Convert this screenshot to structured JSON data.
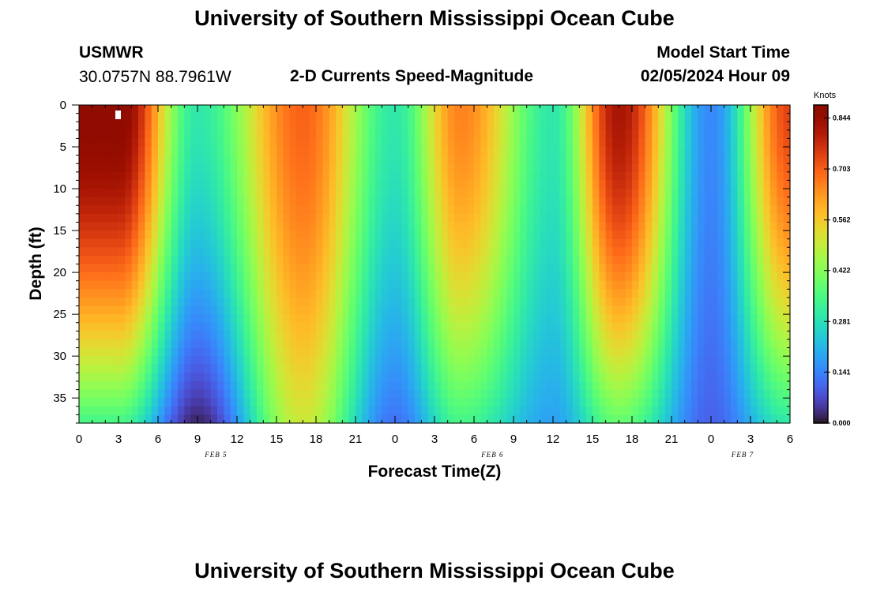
{
  "header": {
    "title": "University of Southern Mississippi Ocean Cube",
    "station": "USMWR",
    "coords": "30.0757N  88.7961W",
    "subtitle": "2-D Currents Speed-Magnitude",
    "model_start_label": "Model Start Time",
    "model_start_value": "02/05/2024 Hour 09"
  },
  "footer": {
    "title": "University of Southern Mississippi Ocean Cube"
  },
  "chart_data": {
    "type": "heatmap",
    "xlabel": "Forecast Time(Z)",
    "ylabel": "Depth (ft)",
    "x_tick_labels": [
      "0",
      "3",
      "6",
      "9",
      "12",
      "15",
      "18",
      "21",
      "0",
      "3",
      "6",
      "9",
      "12",
      "15",
      "18",
      "21",
      "0",
      "3",
      "6"
    ],
    "day_labels": [
      "FEB 5",
      "FEB 6",
      "FEB 7"
    ],
    "y_tick_values": [
      0,
      5,
      10,
      15,
      20,
      25,
      30,
      35
    ],
    "ylim": [
      0,
      38
    ],
    "xlim_hours": [
      0,
      54
    ],
    "colorbar": {
      "unit": "Knots",
      "ticks": [
        0.0,
        0.141,
        0.281,
        0.422,
        0.562,
        0.703,
        0.844
      ],
      "tick_labels": [
        "0.000",
        "0.141",
        "0.281",
        "0.422",
        "0.562",
        "0.703",
        "0.844"
      ],
      "range": [
        0,
        0.88
      ],
      "colormap": "turbo"
    },
    "speed_peaks": [
      {
        "hour": 3,
        "surface_knots": 0.88,
        "bottom_knots": 0.34
      },
      {
        "hour": 9,
        "surface_knots": 0.3,
        "bottom_knots": 0.02
      },
      {
        "hour": 17,
        "surface_knots": 0.7,
        "bottom_knots": 0.5
      },
      {
        "hour": 24,
        "surface_knots": 0.3,
        "bottom_knots": 0.12
      },
      {
        "hour": 29,
        "surface_knots": 0.66,
        "bottom_knots": 0.34
      },
      {
        "hour": 36,
        "surface_knots": 0.3,
        "bottom_knots": 0.18
      },
      {
        "hour": 41,
        "surface_knots": 0.82,
        "bottom_knots": 0.38
      },
      {
        "hour": 48,
        "surface_knots": 0.15,
        "bottom_knots": 0.1
      },
      {
        "hour": 54,
        "surface_knots": 0.74,
        "bottom_knots": 0.3
      }
    ]
  }
}
